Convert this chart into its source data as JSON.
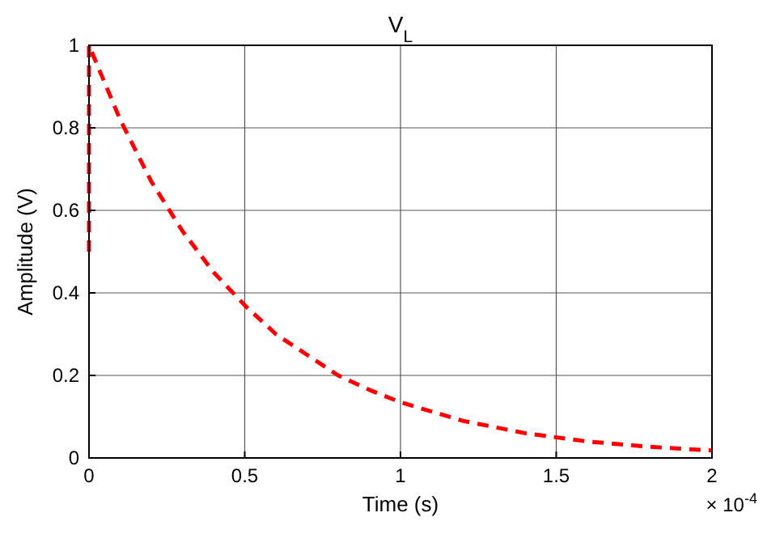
{
  "chart_data": {
    "type": "line",
    "title": "V$_{L}$",
    "xlabel": "Time (s)",
    "ylabel": "Amplitude (V)",
    "annotations": [
      "× 10$^{-4}$"
    ],
    "x": [
      0,
      0,
      0.1,
      0.2,
      0.3,
      0.4,
      0.5,
      0.6,
      0.7,
      0.8,
      0.9,
      1.0,
      1.2,
      1.4,
      1.6,
      1.8,
      2.0
    ],
    "series": [
      {
        "color": "#ff0000",
        "values": [
          0.5,
          1,
          0.82,
          0.67,
          0.55,
          0.45,
          0.37,
          0.3,
          0.25,
          0.2,
          0.165,
          0.135,
          0.09,
          0.06,
          0.04,
          0.027,
          0.018
        ]
      }
    ],
    "xlim": [
      0,
      2
    ],
    "ylim": [
      0,
      1
    ],
    "xticks": [
      0,
      0.5,
      1,
      1.5,
      2
    ],
    "yticks": [
      0,
      0.2,
      0.4,
      0.6,
      0.8,
      1
    ],
    "grid": true,
    "line_style": "dashed",
    "marker": "none"
  }
}
